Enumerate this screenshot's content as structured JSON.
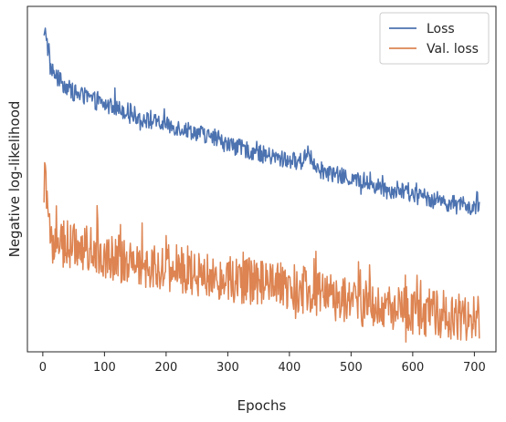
{
  "chart_data": {
    "type": "line",
    "title": "",
    "xlabel": "Epochs",
    "ylabel": "Negative log-likelihood",
    "xlim": [
      -25,
      735
    ],
    "ylim": [
      0,
      1
    ],
    "xticks": [
      0,
      100,
      200,
      300,
      400,
      500,
      600,
      700
    ],
    "yticks": [],
    "grid": false,
    "legend": {
      "position": "top-right"
    },
    "series": [
      {
        "name": "Loss",
        "color": "#4c72b0",
        "x": [
          2,
          5,
          8,
          12,
          20,
          30,
          40,
          50,
          60,
          80,
          100,
          120,
          140,
          160,
          180,
          200,
          220,
          240,
          260,
          280,
          300,
          320,
          340,
          360,
          380,
          400,
          420,
          430,
          440,
          460,
          480,
          500,
          520,
          540,
          560,
          580,
          600,
          620,
          640,
          660,
          680,
          700,
          708
        ],
        "y": [
          0.905,
          0.93,
          0.88,
          0.825,
          0.8,
          0.78,
          0.765,
          0.75,
          0.745,
          0.73,
          0.715,
          0.705,
          0.695,
          0.675,
          0.665,
          0.655,
          0.65,
          0.64,
          0.63,
          0.615,
          0.6,
          0.59,
          0.58,
          0.57,
          0.56,
          0.555,
          0.55,
          0.585,
          0.535,
          0.52,
          0.51,
          0.5,
          0.49,
          0.48,
          0.47,
          0.465,
          0.455,
          0.445,
          0.44,
          0.43,
          0.425,
          0.415,
          0.41
        ],
        "noise": 0.025
      },
      {
        "name": "Val. loss",
        "color": "#dd8452",
        "x": [
          2,
          5,
          8,
          12,
          20,
          30,
          40,
          50,
          60,
          80,
          100,
          120,
          140,
          160,
          180,
          200,
          220,
          240,
          260,
          280,
          300,
          320,
          340,
          360,
          380,
          400,
          420,
          440,
          460,
          480,
          500,
          520,
          540,
          560,
          580,
          600,
          620,
          640,
          660,
          680,
          700,
          708
        ],
        "y": [
          0.5,
          0.53,
          0.35,
          0.33,
          0.32,
          0.315,
          0.31,
          0.305,
          0.3,
          0.295,
          0.285,
          0.27,
          0.265,
          0.255,
          0.25,
          0.245,
          0.24,
          0.235,
          0.225,
          0.22,
          0.215,
          0.21,
          0.2,
          0.195,
          0.19,
          0.185,
          0.18,
          0.17,
          0.16,
          0.155,
          0.15,
          0.14,
          0.135,
          0.13,
          0.125,
          0.12,
          0.115,
          0.11,
          0.105,
          0.1,
          0.095,
          0.09
        ],
        "noise": 0.07
      }
    ]
  }
}
